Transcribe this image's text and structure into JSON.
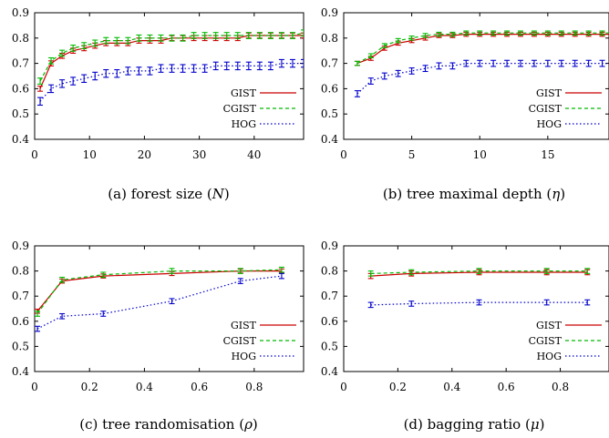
{
  "chart_data": [
    {
      "id": "forest-size",
      "type": "line",
      "caption": "(a) forest size (",
      "caption_var": "N",
      "caption_tail": ")",
      "xlim": [
        0,
        49
      ],
      "ylim": [
        0.4,
        0.9
      ],
      "x_ticks": [
        0,
        10,
        20,
        30,
        40
      ],
      "y_ticks": [
        0.4,
        0.5,
        0.6,
        0.7,
        0.8,
        0.9
      ],
      "series": [
        {
          "name": "GIST",
          "color": "#cc0000",
          "dash": "solid",
          "x": [
            1,
            3,
            5,
            7,
            9,
            11,
            13,
            15,
            17,
            19,
            21,
            23,
            25,
            27,
            29,
            31,
            33,
            35,
            37,
            39,
            41,
            43,
            45,
            47,
            49
          ],
          "y": [
            0.6,
            0.7,
            0.73,
            0.75,
            0.76,
            0.77,
            0.78,
            0.78,
            0.78,
            0.79,
            0.79,
            0.79,
            0.8,
            0.8,
            0.8,
            0.8,
            0.8,
            0.8,
            0.8,
            0.81,
            0.81,
            0.81,
            0.81,
            0.81,
            0.81
          ],
          "err": 0.01
        },
        {
          "name": "CGIST",
          "color": "#00bb00",
          "dash": "dashed",
          "x": [
            1,
            3,
            5,
            7,
            9,
            11,
            13,
            15,
            17,
            19,
            21,
            23,
            25,
            27,
            29,
            31,
            33,
            35,
            37,
            39,
            41,
            43,
            45,
            47,
            49
          ],
          "y": [
            0.63,
            0.71,
            0.74,
            0.76,
            0.77,
            0.78,
            0.79,
            0.79,
            0.79,
            0.8,
            0.8,
            0.8,
            0.8,
            0.8,
            0.81,
            0.81,
            0.81,
            0.81,
            0.81,
            0.81,
            0.81,
            0.81,
            0.81,
            0.81,
            0.82
          ],
          "err": 0.012
        },
        {
          "name": "HOG",
          "color": "#0000cc",
          "dash": "dotted",
          "x": [
            1,
            3,
            5,
            7,
            9,
            11,
            13,
            15,
            17,
            19,
            21,
            23,
            25,
            27,
            29,
            31,
            33,
            35,
            37,
            39,
            41,
            43,
            45,
            47,
            49
          ],
          "y": [
            0.55,
            0.6,
            0.62,
            0.63,
            0.64,
            0.65,
            0.66,
            0.66,
            0.67,
            0.67,
            0.67,
            0.68,
            0.68,
            0.68,
            0.68,
            0.68,
            0.69,
            0.69,
            0.69,
            0.69,
            0.69,
            0.69,
            0.7,
            0.7,
            0.7
          ],
          "err": 0.015
        }
      ]
    },
    {
      "id": "tree-depth",
      "type": "line",
      "caption": "(b) tree maximal depth (",
      "caption_var": "η",
      "caption_tail": ")",
      "xlim": [
        0,
        19.5
      ],
      "ylim": [
        0.4,
        0.9
      ],
      "x_ticks": [
        0,
        5,
        10,
        15
      ],
      "y_ticks": [
        0.4,
        0.5,
        0.6,
        0.7,
        0.8,
        0.9
      ],
      "series": [
        {
          "name": "GIST",
          "color": "#cc0000",
          "dash": "solid",
          "x": [
            1,
            2,
            3,
            4,
            5,
            6,
            7,
            8,
            9,
            10,
            11,
            12,
            13,
            14,
            15,
            16,
            17,
            18,
            19,
            20
          ],
          "y": [
            0.7,
            0.72,
            0.76,
            0.78,
            0.79,
            0.8,
            0.81,
            0.81,
            0.815,
            0.815,
            0.815,
            0.815,
            0.815,
            0.815,
            0.815,
            0.815,
            0.815,
            0.815,
            0.815,
            0.815
          ],
          "err": 0.008
        },
        {
          "name": "CGIST",
          "color": "#00bb00",
          "dash": "dashed",
          "x": [
            1,
            2,
            3,
            4,
            5,
            6,
            7,
            8,
            9,
            10,
            11,
            12,
            13,
            14,
            15,
            16,
            17,
            18,
            19,
            20
          ],
          "y": [
            0.7,
            0.73,
            0.77,
            0.79,
            0.8,
            0.81,
            0.815,
            0.815,
            0.82,
            0.82,
            0.82,
            0.82,
            0.82,
            0.82,
            0.82,
            0.82,
            0.82,
            0.82,
            0.82,
            0.82
          ],
          "err": 0.008
        },
        {
          "name": "HOG",
          "color": "#0000cc",
          "dash": "dotted",
          "x": [
            1,
            2,
            3,
            4,
            5,
            6,
            7,
            8,
            9,
            10,
            11,
            12,
            13,
            14,
            15,
            16,
            17,
            18,
            19,
            20
          ],
          "y": [
            0.58,
            0.63,
            0.65,
            0.66,
            0.67,
            0.68,
            0.69,
            0.69,
            0.7,
            0.7,
            0.7,
            0.7,
            0.7,
            0.7,
            0.7,
            0.7,
            0.7,
            0.7,
            0.7,
            0.7
          ],
          "err": 0.012
        }
      ]
    },
    {
      "id": "tree-randomisation",
      "type": "line",
      "caption": "(c) tree randomisation (",
      "caption_var": "ρ",
      "caption_tail": ")",
      "xlim": [
        0,
        0.98
      ],
      "ylim": [
        0.4,
        0.9
      ],
      "x_ticks": [
        0,
        0.2,
        0.4,
        0.6,
        0.8
      ],
      "y_ticks": [
        0.4,
        0.5,
        0.6,
        0.7,
        0.8,
        0.9
      ],
      "series": [
        {
          "name": "GIST",
          "color": "#cc0000",
          "dash": "solid",
          "x": [
            0.01,
            0.1,
            0.25,
            0.5,
            0.75,
            0.9
          ],
          "y": [
            0.64,
            0.76,
            0.78,
            0.79,
            0.8,
            0.8
          ],
          "err": 0.008
        },
        {
          "name": "CGIST",
          "color": "#00bb00",
          "dash": "dashed",
          "x": [
            0.01,
            0.1,
            0.25,
            0.5,
            0.75,
            0.9
          ],
          "y": [
            0.63,
            0.765,
            0.785,
            0.8,
            0.8,
            0.805
          ],
          "err": 0.01
        },
        {
          "name": "HOG",
          "color": "#0000cc",
          "dash": "dotted",
          "x": [
            0.01,
            0.1,
            0.25,
            0.5,
            0.75,
            0.9
          ],
          "y": [
            0.57,
            0.62,
            0.63,
            0.68,
            0.76,
            0.78
          ],
          "err": 0.01
        }
      ]
    },
    {
      "id": "bagging-ratio",
      "type": "line",
      "caption": "(d) bagging ratio (",
      "caption_var": "μ",
      "caption_tail": ")",
      "xlim": [
        0,
        0.98
      ],
      "ylim": [
        0.4,
        0.9
      ],
      "x_ticks": [
        0,
        0.2,
        0.4,
        0.6,
        0.8
      ],
      "y_ticks": [
        0.4,
        0.5,
        0.6,
        0.7,
        0.8,
        0.9
      ],
      "series": [
        {
          "name": "GIST",
          "color": "#cc0000",
          "dash": "solid",
          "x": [
            0.1,
            0.25,
            0.5,
            0.75,
            0.9
          ],
          "y": [
            0.78,
            0.79,
            0.795,
            0.795,
            0.795
          ],
          "err": 0.01
        },
        {
          "name": "CGIST",
          "color": "#00bb00",
          "dash": "dashed",
          "x": [
            0.1,
            0.25,
            0.5,
            0.75,
            0.9
          ],
          "y": [
            0.79,
            0.795,
            0.8,
            0.8,
            0.8
          ],
          "err": 0.01
        },
        {
          "name": "HOG",
          "color": "#0000cc",
          "dash": "dotted",
          "x": [
            0.1,
            0.25,
            0.5,
            0.75,
            0.9
          ],
          "y": [
            0.665,
            0.67,
            0.675,
            0.675,
            0.675
          ],
          "err": 0.01
        }
      ]
    }
  ]
}
